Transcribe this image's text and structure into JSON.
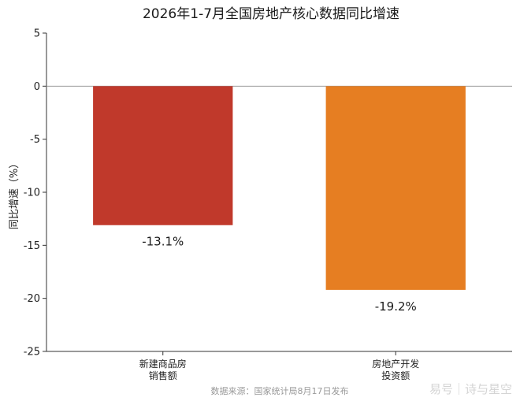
{
  "chart_data": {
    "type": "bar",
    "title": "2026年1-7月全国房地产核心数据同比增速",
    "ylabel": "同比增速（%）",
    "xlabel": "",
    "categories": [
      [
        "新建商品房",
        "销售额"
      ],
      [
        "房地产开发",
        "投资额"
      ]
    ],
    "values": [
      -13.1,
      -19.2
    ],
    "data_labels": [
      "-13.1%",
      "-19.2%"
    ],
    "colors": [
      "#c0392b",
      "#e67e22"
    ],
    "ylim": [
      -25,
      5
    ],
    "yticks": [
      5,
      0,
      -5,
      -10,
      -15,
      -20,
      -25
    ],
    "grid": false,
    "zero_line": true
  },
  "footer": {
    "source": "数据来源：国家统计局8月17日发布",
    "watermark": "易号｜诗与星空"
  }
}
